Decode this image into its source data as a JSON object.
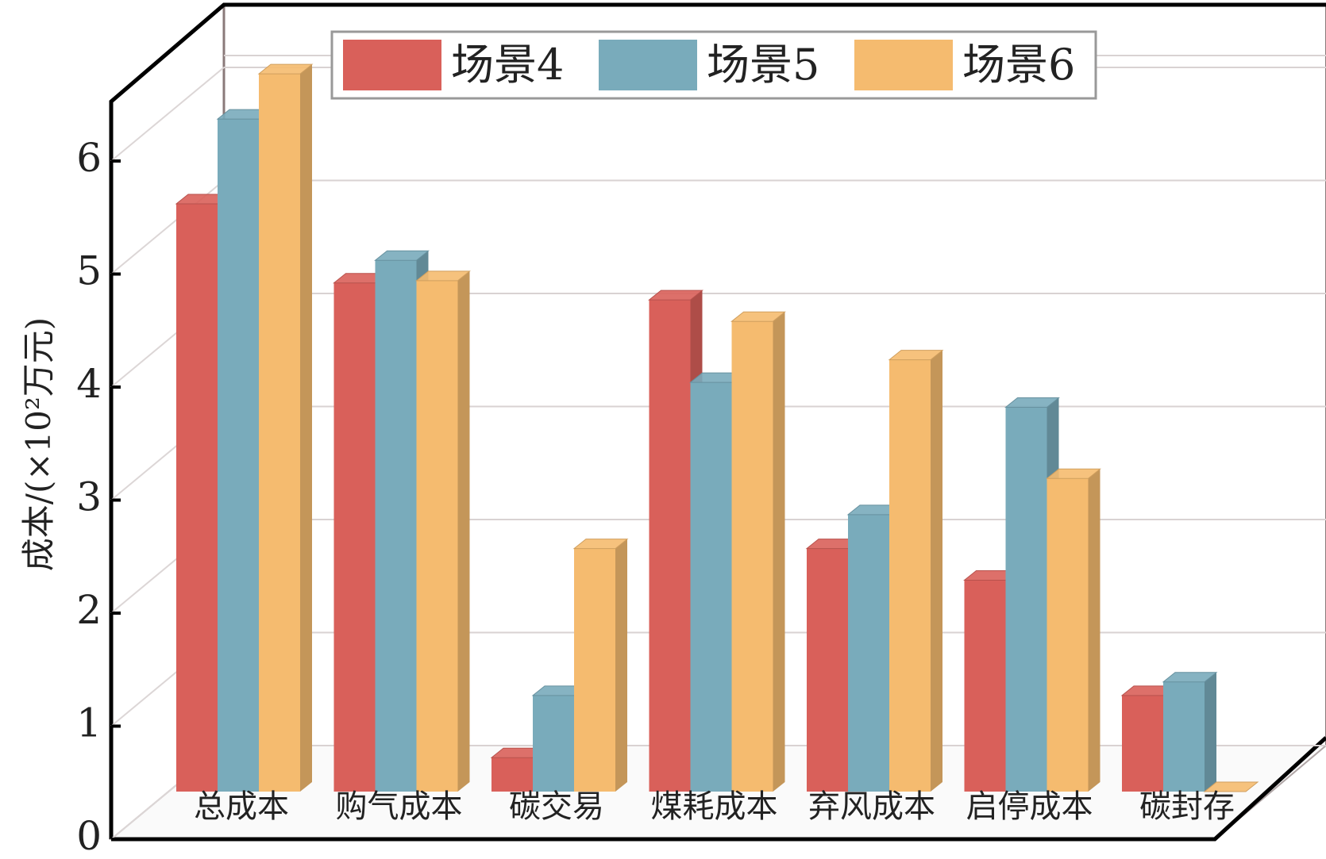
{
  "chart_data": {
    "type": "bar",
    "title": "",
    "xlabel": "",
    "ylabel": "成本/(×10²万元)",
    "ylim": [
      0,
      6.5
    ],
    "yticks": [
      "0",
      "1",
      "2",
      "3",
      "4",
      "5",
      "6"
    ],
    "categories": [
      "总成本",
      "购气成本",
      "碳交易",
      "煤耗成本",
      "弃风成本",
      "启停成本",
      "碳封存"
    ],
    "series": [
      {
        "name": "场景4",
        "values": [
          5.2,
          4.5,
          0.3,
          4.35,
          2.15,
          1.87,
          0.85
        ]
      },
      {
        "name": "场景5",
        "values": [
          5.95,
          4.7,
          0.85,
          3.62,
          2.45,
          3.4,
          0.97
        ]
      },
      {
        "name": "场景6",
        "values": [
          6.35,
          4.52,
          2.15,
          4.16,
          3.82,
          2.77,
          0.0
        ]
      }
    ],
    "grid": true,
    "legend_position": "top-center",
    "style": "3d-bar",
    "colors": {
      "场景4": "#d9605a",
      "场景5": "#79abbb",
      "场景6": "#f5bb6f"
    }
  }
}
